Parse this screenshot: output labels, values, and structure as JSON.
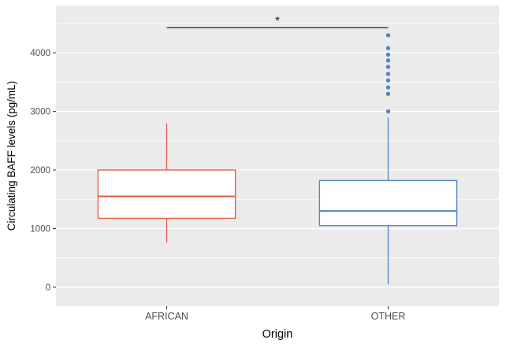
{
  "chart_data": {
    "type": "boxplot",
    "title": "",
    "xlabel": "Origin",
    "ylabel": "Circulating BAFF levels (pg/mL)",
    "ylim": [
      -323,
      4808
    ],
    "yticks": [
      0,
      1000,
      2000,
      3000,
      4000
    ],
    "yticks_minor": [
      500,
      1500,
      2500,
      3500,
      4500
    ],
    "categories": [
      "AFRICAN",
      "OTHER"
    ],
    "series": [
      {
        "name": "AFRICAN",
        "color": "#E0614C",
        "whisker_low": 760,
        "q1": 1175,
        "median": 1550,
        "q3": 2000,
        "whisker_high": 2800,
        "outliers": []
      },
      {
        "name": "OTHER",
        "color": "#5585C7",
        "whisker_low": 50,
        "q1": 1050,
        "median": 1300,
        "q3": 1820,
        "whisker_high": 2900,
        "outliers": [
          3000,
          3300,
          3410,
          3530,
          3640,
          3760,
          3870,
          3970,
          4080,
          4300
        ]
      }
    ],
    "significance": {
      "label": "*",
      "y": 4430,
      "between": [
        "AFRICAN",
        "OTHER"
      ]
    },
    "colors": {
      "panel_bg": "#EBEBEB",
      "grid": "#FFFFFF",
      "tick_text": "#4D4D4D",
      "axis_title": "#000000",
      "sig_line": "#1A1A1A",
      "box_fill": "#FFFFFF"
    },
    "legend": "none",
    "grid": "on"
  }
}
